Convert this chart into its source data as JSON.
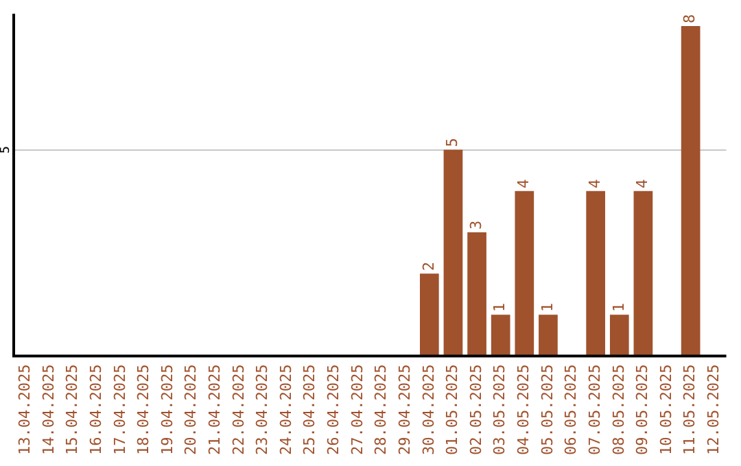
{
  "chart_data": {
    "type": "bar",
    "categories": [
      "13.04.2025",
      "14.04.2025",
      "15.04.2025",
      "16.04.2025",
      "17.04.2025",
      "18.04.2025",
      "19.04.2025",
      "20.04.2025",
      "21.04.2025",
      "22.04.2025",
      "23.04.2025",
      "24.04.2025",
      "25.04.2025",
      "26.04.2025",
      "27.04.2025",
      "28.04.2025",
      "29.04.2025",
      "30.04.2025",
      "01.05.2025",
      "02.05.2025",
      "03.05.2025",
      "04.05.2025",
      "05.05.2025",
      "06.05.2025",
      "07.05.2025",
      "08.05.2025",
      "09.05.2025",
      "10.05.2025",
      "11.05.2025",
      "12.05.2025"
    ],
    "values": [
      null,
      null,
      null,
      null,
      null,
      null,
      null,
      null,
      null,
      null,
      null,
      null,
      null,
      null,
      null,
      null,
      null,
      2,
      5,
      3,
      1,
      4,
      1,
      null,
      4,
      1,
      4,
      null,
      8,
      null
    ],
    "color": "#a0522d",
    "ylim": [
      0,
      8.3
    ],
    "yticks": [
      5
    ],
    "grid": "y",
    "legend": false,
    "data_labels": true
  }
}
